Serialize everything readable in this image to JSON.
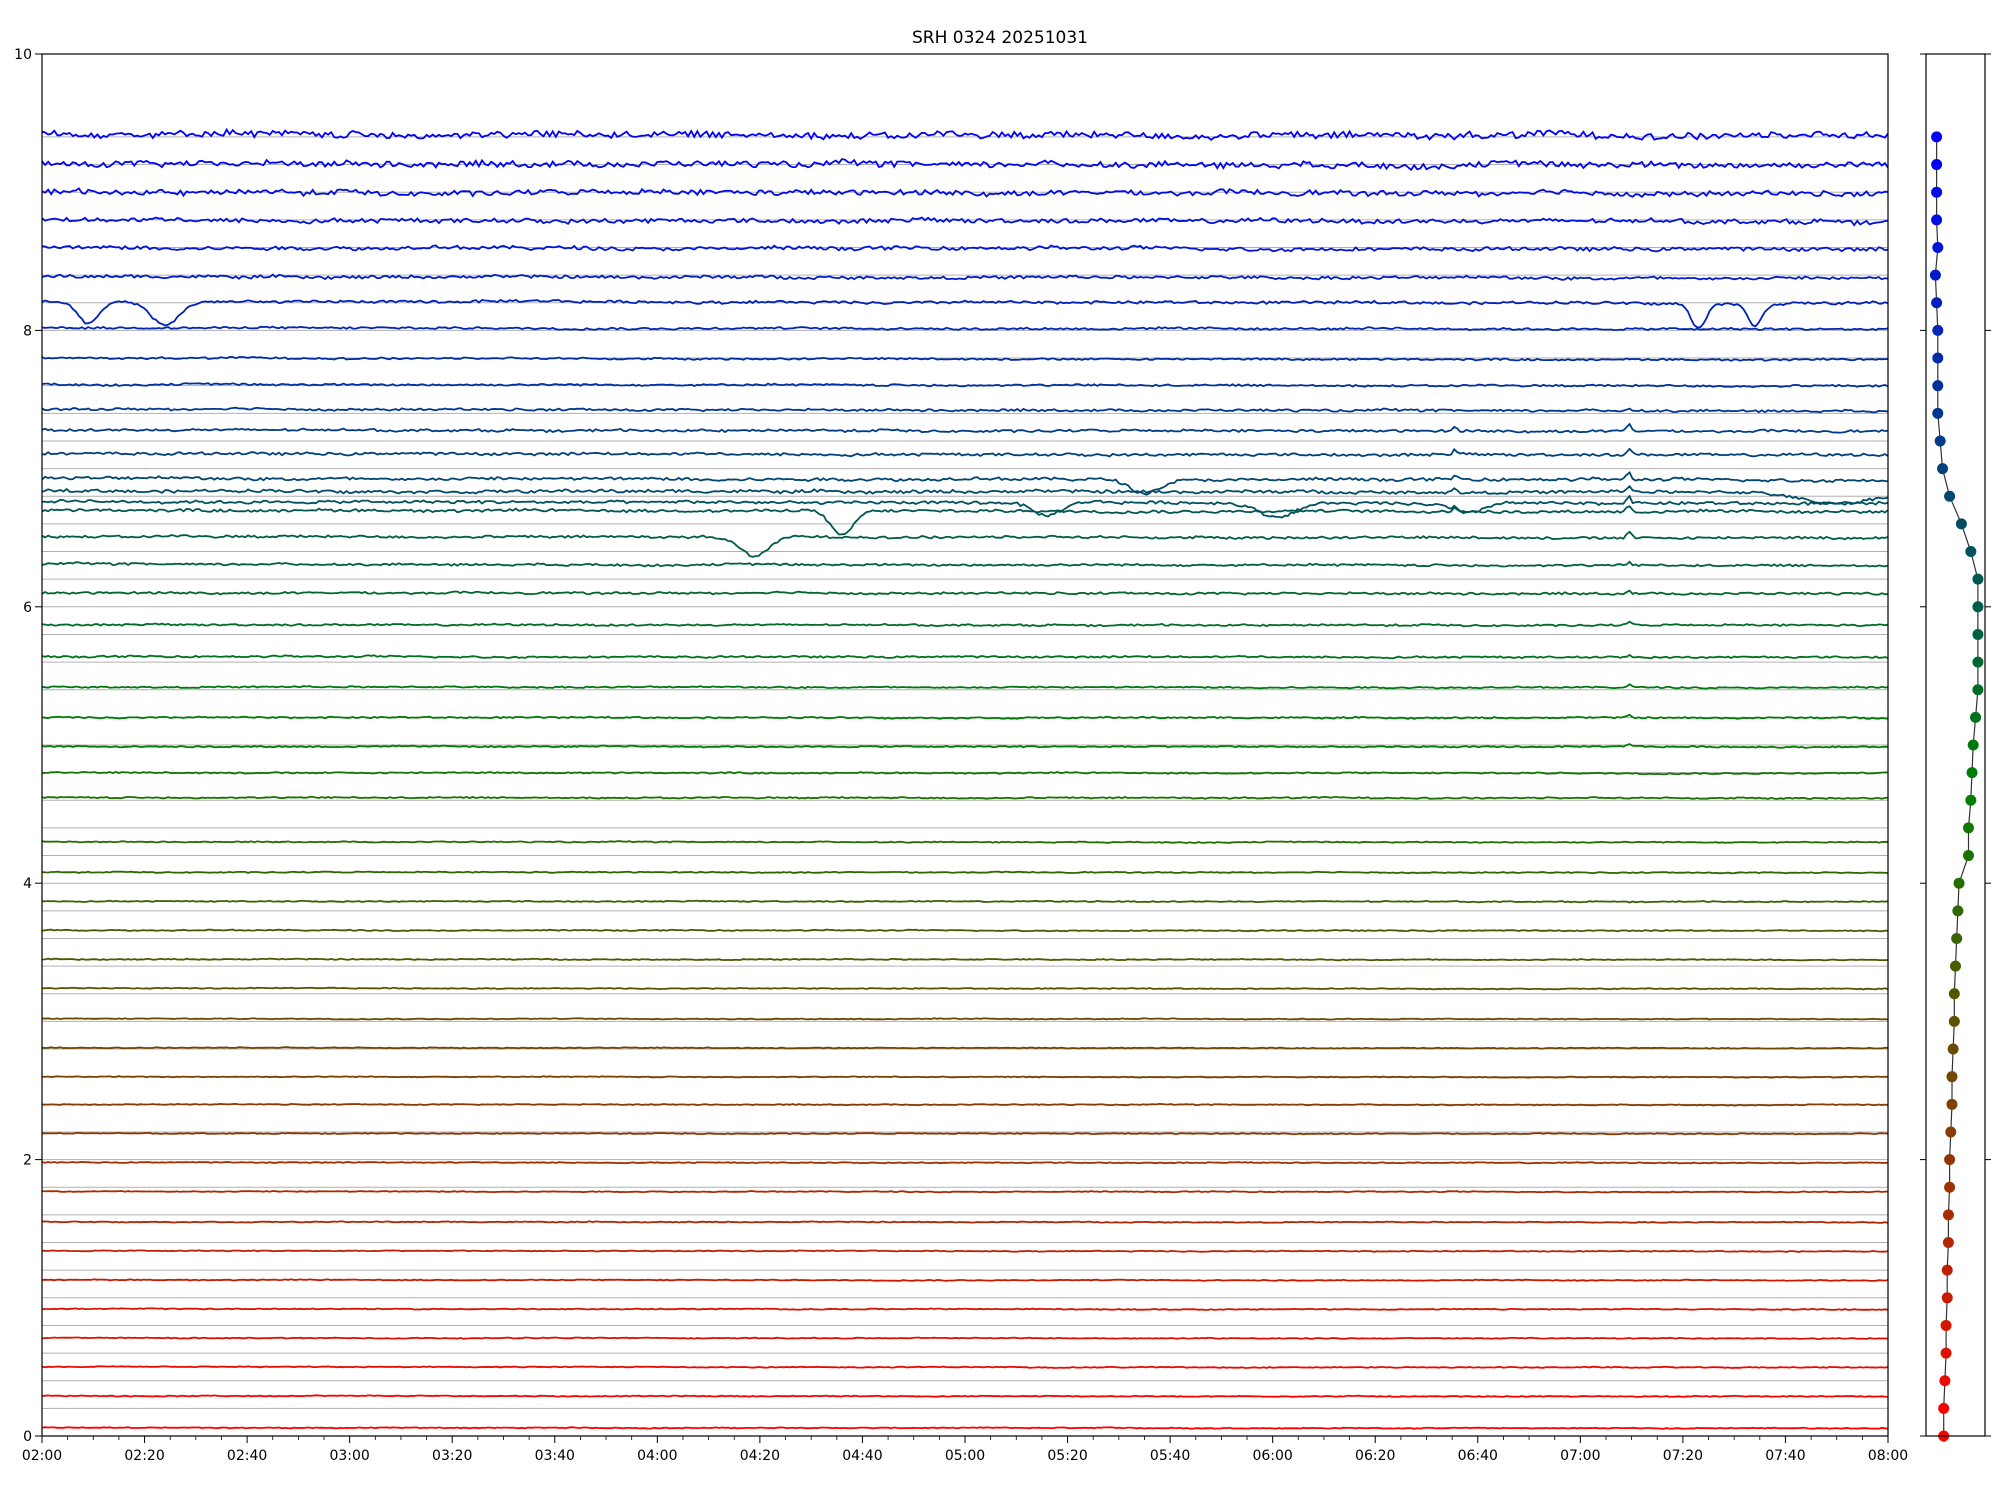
{
  "chart_data": [
    {
      "type": "line",
      "title": "SRH 0324 20251031",
      "xlabel": "",
      "ylabel": "",
      "x_range": [
        "02:00",
        "08:00"
      ],
      "x_tick_labels": [
        "02:00",
        "02:20",
        "02:40",
        "03:00",
        "03:20",
        "03:40",
        "04:00",
        "04:20",
        "04:40",
        "05:00",
        "05:20",
        "05:40",
        "06:00",
        "06:20",
        "06:40",
        "07:00",
        "07:20",
        "07:40",
        "08:00"
      ],
      "ylim": [
        0,
        10
      ],
      "y_tick_labels": [
        "0",
        "2",
        "4",
        "6",
        "8",
        "10"
      ],
      "grid": "horizontal lines every 0.2",
      "color_scale": [
        "#ff0000",
        "#008000",
        "#0000ff"
      ],
      "channel_offsets": [
        0.0,
        0.2,
        0.4,
        0.6,
        0.8,
        1.0,
        1.2,
        1.4,
        1.6,
        1.8,
        2.0,
        2.2,
        2.4,
        2.6,
        2.8,
        3.0,
        3.2,
        3.4,
        3.6,
        3.8,
        4.0,
        4.2,
        4.4,
        4.6,
        4.8,
        5.0,
        5.2,
        5.4,
        5.6,
        5.8,
        6.0,
        6.2,
        6.4,
        6.6,
        6.8,
        7.0,
        7.2,
        7.4,
        7.6,
        7.8,
        8.0,
        8.2,
        8.4,
        8.6,
        8.8,
        9.0,
        9.2,
        9.4
      ],
      "baseline_levels": [
        0.06,
        0.29,
        0.5,
        0.71,
        0.92,
        1.13,
        1.34,
        1.55,
        1.77,
        1.98,
        2.19,
        2.4,
        2.6,
        2.81,
        3.02,
        3.24,
        3.45,
        3.66,
        3.87,
        4.08,
        4.3,
        4.62,
        4.8,
        4.99,
        5.2,
        5.42,
        5.64,
        5.87,
        6.1,
        6.31,
        6.51,
        6.7,
        6.76,
        6.84,
        6.93,
        7.11,
        7.28,
        7.43,
        7.61,
        7.8,
        8.02,
        8.21,
        8.39,
        8.6,
        8.8,
        9.0,
        9.21,
        9.42
      ],
      "noise_amplitude": [
        0.006,
        0.006,
        0.006,
        0.006,
        0.006,
        0.006,
        0.006,
        0.006,
        0.006,
        0.006,
        0.006,
        0.006,
        0.006,
        0.006,
        0.006,
        0.006,
        0.007,
        0.007,
        0.007,
        0.007,
        0.007,
        0.009,
        0.009,
        0.009,
        0.01,
        0.01,
        0.012,
        0.012,
        0.014,
        0.014,
        0.016,
        0.018,
        0.02,
        0.02,
        0.02,
        0.018,
        0.016,
        0.015,
        0.013,
        0.012,
        0.014,
        0.018,
        0.02,
        0.025,
        0.03,
        0.035,
        0.04,
        0.045
      ]
    },
    {
      "type": "scatter",
      "title": "",
      "y": [
        0.0,
        0.2,
        0.4,
        0.6,
        0.8,
        1.0,
        1.2,
        1.4,
        1.6,
        1.8,
        2.0,
        2.2,
        2.4,
        2.6,
        2.8,
        3.0,
        3.2,
        3.4,
        3.6,
        3.8,
        4.0,
        4.2,
        4.4,
        4.6,
        4.8,
        5.0,
        5.2,
        5.4,
        5.6,
        5.8,
        6.0,
        6.2,
        6.4,
        6.6,
        6.8,
        7.0,
        7.2,
        7.4,
        7.6,
        7.8,
        8.0,
        8.2,
        8.4,
        8.6,
        8.8,
        9.0,
        9.2,
        9.4
      ],
      "x": [
        0.15,
        0.15,
        0.16,
        0.17,
        0.17,
        0.18,
        0.18,
        0.19,
        0.19,
        0.2,
        0.2,
        0.21,
        0.22,
        0.22,
        0.23,
        0.24,
        0.24,
        0.25,
        0.26,
        0.27,
        0.28,
        0.36,
        0.36,
        0.38,
        0.39,
        0.4,
        0.42,
        0.44,
        0.44,
        0.44,
        0.44,
        0.44,
        0.38,
        0.3,
        0.2,
        0.14,
        0.12,
        0.1,
        0.1,
        0.1,
        0.1,
        0.09,
        0.08,
        0.1,
        0.09,
        0.09,
        0.09,
        0.09
      ],
      "xlim": [
        0,
        0.5
      ],
      "ylim": [
        0,
        10
      ],
      "connected": true
    }
  ]
}
